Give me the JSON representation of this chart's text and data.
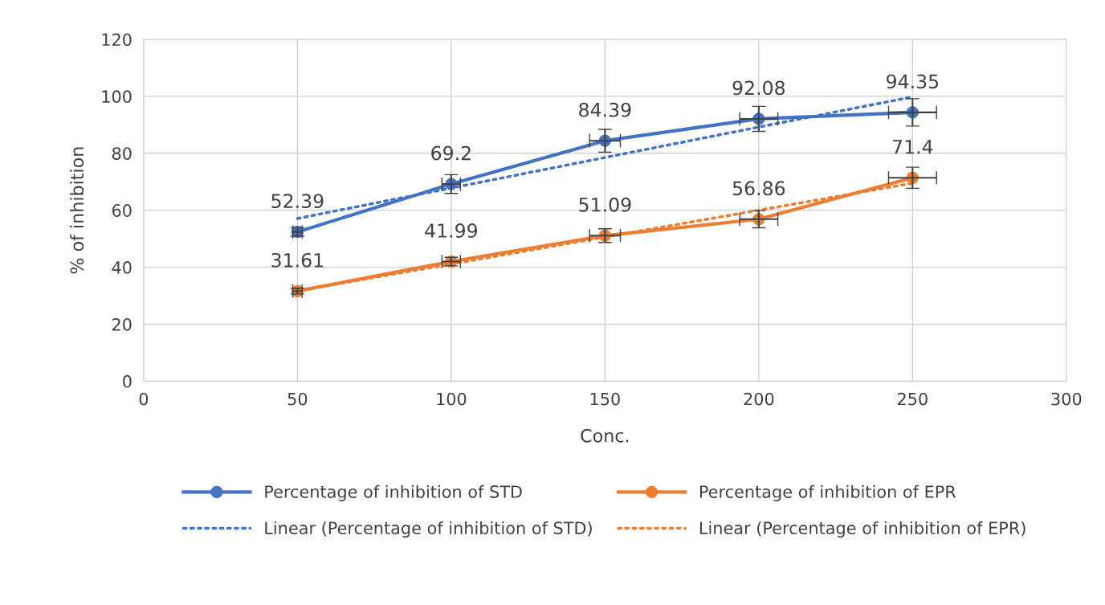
{
  "chart_data": {
    "type": "line",
    "xlabel": "Conc.",
    "ylabel": "% of inhibition",
    "x": [
      50,
      100,
      150,
      200,
      250
    ],
    "xlim": [
      0,
      300
    ],
    "xticks": [
      0,
      50,
      100,
      150,
      200,
      250,
      300
    ],
    "ylim": [
      0,
      120
    ],
    "yticks": [
      0,
      20,
      40,
      60,
      80,
      100,
      120
    ],
    "grid": true,
    "legend": "bottom",
    "marker": "circle",
    "series": [
      {
        "name": "Percentage of inhibition of STD",
        "color": "#4472c4",
        "values": [
          52.39,
          69.2,
          84.39,
          92.08,
          94.35
        ],
        "value_labels": [
          "52.39",
          "69.2",
          "84.39",
          "92.08",
          "94.35"
        ],
        "errors": [
          1.5,
          3.3,
          4,
          4.4,
          4.8
        ],
        "xerrors": [
          1.5,
          3,
          5,
          6.2,
          7.8
        ]
      },
      {
        "name": "Percentage of inhibition of EPR",
        "color": "#ed7d31",
        "values": [
          31.61,
          41.99,
          51.09,
          56.86,
          71.4
        ],
        "value_labels": [
          "31.61",
          "41.99",
          "51.09",
          "56.86",
          "71.4"
        ],
        "errors": [
          1,
          1.5,
          2.4,
          3,
          3.7
        ],
        "xerrors": [
          1.5,
          3,
          5,
          6.2,
          7.8
        ]
      },
      {
        "name": "Linear (Percentage of inhibition of STD)",
        "color": "#4472c4",
        "values": [
          57.1,
          67.8,
          78.5,
          89.2,
          99.8
        ],
        "line_style": "dotted",
        "marker": "none"
      },
      {
        "name": "Linear (Percentage of inhibition of EPR)",
        "color": "#ed7d31",
        "values": [
          31.7,
          41.1,
          50.6,
          60.0,
          69.5
        ],
        "line_style": "dotted",
        "marker": "none"
      }
    ]
  }
}
